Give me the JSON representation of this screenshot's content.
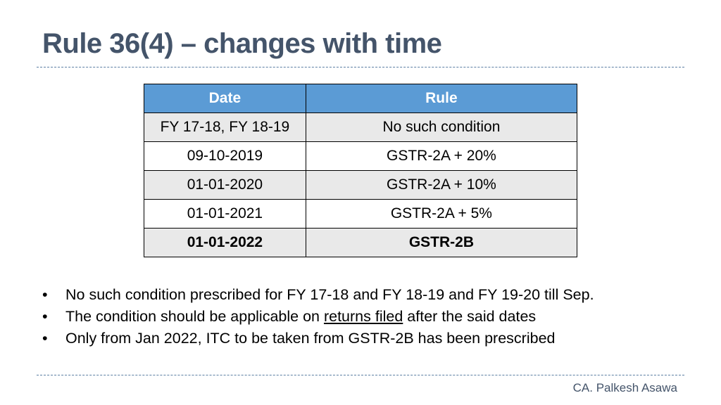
{
  "slide": {
    "title": "Rule 36(4) – changes with time",
    "author": "CA. Palkesh Asawa"
  },
  "table": {
    "headers": [
      "Date",
      "Rule"
    ],
    "rows": [
      {
        "date": "FY 17-18, FY 18-19",
        "rule": "No such condition"
      },
      {
        "date": "09-10-2019",
        "rule": "GSTR-2A + 20%"
      },
      {
        "date": "01-01-2020",
        "rule": "GSTR-2A + 10%"
      },
      {
        "date": "01-01-2021",
        "rule": "GSTR-2A + 5%"
      },
      {
        "date": "01-01-2022",
        "rule": "GSTR-2B"
      }
    ]
  },
  "bullets": {
    "b1": "No such condition prescribed for FY 17-18 and FY 18-19 and FY 19-20 till Sep.",
    "b2_before": "The condition should be applicable on ",
    "b2_underline": "returns filed",
    "b2_after": " after the said dates",
    "b3": "Only from Jan 2022, ITC to be taken from GSTR-2B has been prescribed",
    "marker": "•"
  },
  "colors": {
    "title": "#44546a",
    "header_bg": "#5b9bd5",
    "row_shade": "#e9e9e9",
    "divider": "#5b7ea3"
  }
}
